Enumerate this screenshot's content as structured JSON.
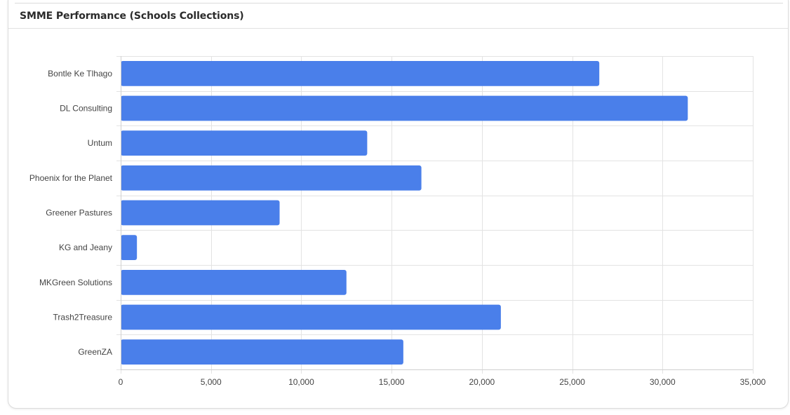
{
  "card": {
    "title": "SMME Performance (Schools Collections)"
  },
  "colors": {
    "bar": "#4a7fea",
    "grid": "#e3e3e3",
    "axis": "#d0d0d0",
    "text": "#444444"
  },
  "chart_data": {
    "type": "bar",
    "orientation": "horizontal",
    "title": "SMME Performance (Schools Collections)",
    "xlabel": "",
    "ylabel": "",
    "categories": [
      "Bontle Ke Tlhago",
      "DL Consulting",
      "Untum",
      "Phoenix for the Planet",
      "Greener Pastures",
      "KG and Jeany",
      "MKGreen Solutions",
      "Trash2Treasure",
      "GreenZA"
    ],
    "values": [
      26500,
      31400,
      13650,
      16650,
      8800,
      900,
      12500,
      21050,
      15650
    ],
    "xlim": [
      0,
      35000
    ],
    "xticks": [
      0,
      5000,
      10000,
      15000,
      20000,
      25000,
      30000,
      35000
    ],
    "xtick_labels": [
      "0",
      "5,000",
      "10,000",
      "15,000",
      "20,000",
      "25,000",
      "30,000",
      "35,000"
    ],
    "grid": true,
    "legend": "none"
  }
}
